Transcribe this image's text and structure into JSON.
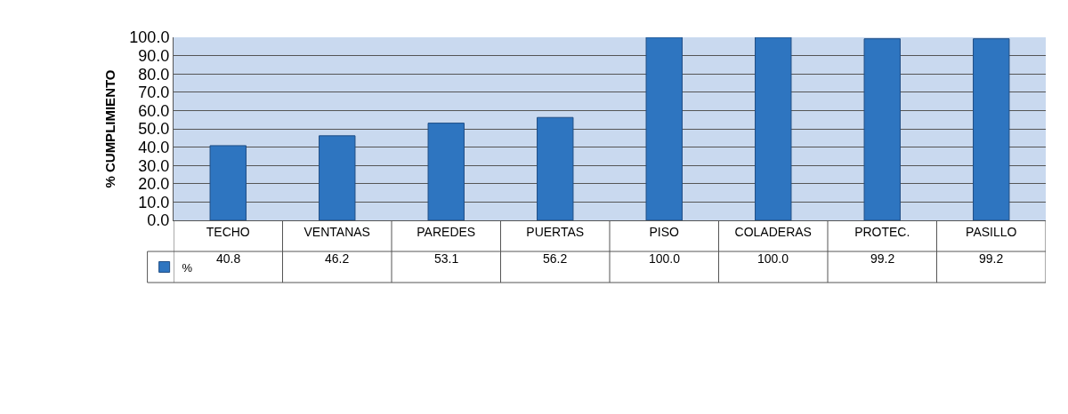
{
  "chart_data": {
    "type": "bar",
    "ylabel": "% CUMPLIMIENTO",
    "categories": [
      "TECHO",
      "VENTANAS",
      "PAREDES",
      "PUERTAS",
      "PISO",
      "COLADERAS",
      "PROTEC.",
      "PASILLO"
    ],
    "series": [
      {
        "name": "%",
        "color": "#2e75c0",
        "values": [
          40.8,
          46.2,
          53.1,
          56.2,
          100.0,
          100.0,
          99.2,
          99.2
        ],
        "value_labels": [
          "40.8",
          "46.2",
          "53.1",
          "56.2",
          "100.0",
          "100.0",
          "99.2",
          "99.2"
        ]
      }
    ],
    "ylim": [
      0,
      100
    ],
    "yticks": [
      {
        "value": 0,
        "label": "0.0"
      },
      {
        "value": 10,
        "label": "10.0"
      },
      {
        "value": 20,
        "label": "20.0"
      },
      {
        "value": 30,
        "label": "30.0"
      },
      {
        "value": 40,
        "label": "40.0"
      },
      {
        "value": 50,
        "label": "50.0"
      },
      {
        "value": 60,
        "label": "60.0"
      },
      {
        "value": 70,
        "label": "70.0"
      },
      {
        "value": 80,
        "label": "80.0"
      },
      {
        "value": 90,
        "label": "90.0"
      },
      {
        "value": 100,
        "label": "100.0"
      }
    ],
    "grid": "y",
    "legend": "bottom left"
  }
}
